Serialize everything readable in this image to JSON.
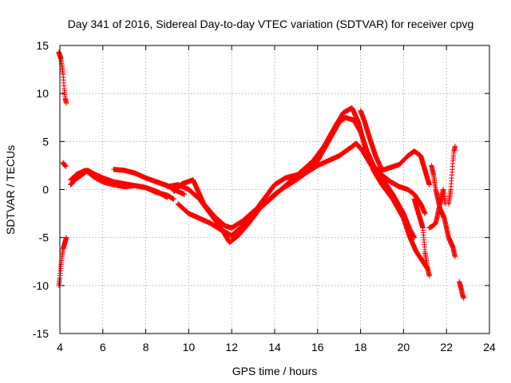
{
  "chart_data": {
    "type": "scatter",
    "title": "Day 341 of 2016, Sidereal Day-to-day VTEC variation (SDTVAR) for receiver cpvg",
    "xlabel": "GPS time / hours",
    "ylabel": "SDTVAR / TECUs",
    "xlim": [
      4,
      24
    ],
    "ylim": [
      -15,
      15
    ],
    "xticks": [
      4,
      6,
      8,
      10,
      12,
      14,
      16,
      18,
      20,
      22,
      24
    ],
    "yticks": [
      -15,
      -10,
      -5,
      0,
      5,
      10,
      15
    ],
    "grid": true,
    "marker": "+",
    "series": [
      {
        "name": "sdtvar",
        "color": "#ff0000",
        "segments": [
          {
            "x": [
              3.95,
              4.05,
              4.15,
              4.2,
              4.25,
              4.3
            ],
            "y": [
              14.3,
              13.6,
              12.0,
              10.5,
              9.5,
              9.0
            ]
          },
          {
            "x": [
              3.95,
              4.0,
              4.05,
              4.1,
              4.15,
              4.25,
              4.3
            ],
            "y": [
              -10.0,
              -9.2,
              -8.0,
              -7.0,
              -6.2,
              -5.4,
              -5.0
            ]
          },
          {
            "x": [
              4.15,
              4.2,
              4.28
            ],
            "y": [
              2.8,
              2.6,
              2.4
            ]
          },
          {
            "x": [
              4.5,
              4.7,
              5.0,
              5.3,
              5.6,
              6.0,
              6.5,
              7.0,
              7.5,
              8.0,
              8.5,
              9.0
            ],
            "y": [
              0.5,
              1.0,
              1.5,
              2.0,
              1.6,
              1.2,
              0.8,
              0.6,
              0.4,
              0.2,
              -0.2,
              -0.8
            ]
          },
          {
            "x": [
              4.5,
              4.8,
              5.2,
              5.6,
              6.0,
              6.5,
              7.0,
              7.5,
              8.0,
              8.5,
              9.0,
              9.3
            ],
            "y": [
              1.0,
              1.6,
              2.0,
              1.3,
              0.8,
              0.5,
              0.3,
              0.4,
              0.2,
              -0.3,
              -0.6,
              -1.0
            ]
          },
          {
            "x": [
              6.5,
              7.0,
              7.5,
              8.0,
              8.5,
              9.0,
              9.5,
              9.8
            ],
            "y": [
              2.1,
              2.0,
              1.7,
              1.2,
              0.8,
              0.4,
              -0.2,
              -0.5
            ]
          },
          {
            "x": [
              9.0,
              9.5,
              10.0,
              10.5,
              11.0,
              11.5,
              11.9,
              12.3,
              12.8,
              13.3,
              13.8,
              14.3,
              14.8,
              15.3,
              15.8,
              16.3,
              16.8,
              17.2,
              17.6,
              17.9,
              18.2,
              18.6,
              19.0,
              19.5,
              20.0,
              20.3,
              20.6,
              20.9,
              21.1
            ],
            "y": [
              0.3,
              0.5,
              0.0,
              -1.0,
              -2.5,
              -4.0,
              -5.5,
              -4.8,
              -3.5,
              -2.0,
              -1.0,
              0.0,
              1.0,
              2.0,
              3.0,
              4.5,
              6.5,
              8.0,
              8.5,
              7.0,
              4.5,
              2.0,
              0.5,
              -1.0,
              -3.0,
              -5.0,
              -6.5,
              -7.5,
              -8.2
            ]
          },
          {
            "x": [
              9.3,
              9.7,
              10.2,
              10.7,
              11.2,
              11.7,
              12.0,
              12.5,
              13.0,
              13.5,
              14.0,
              14.5,
              15.0,
              15.5,
              16.0,
              16.5,
              17.0,
              17.5,
              17.8,
              18.1,
              18.5,
              19.0,
              19.5,
              20.0,
              20.3,
              20.5
            ],
            "y": [
              -0.2,
              0.6,
              1.0,
              -1.5,
              -2.8,
              -3.8,
              -4.0,
              -3.3,
              -2.3,
              -1.5,
              -0.5,
              0.3,
              1.0,
              1.8,
              2.5,
              3.0,
              3.5,
              4.3,
              4.8,
              4.0,
              2.5,
              1.2,
              -0.5,
              -2.5,
              -4.2,
              -5.0
            ]
          },
          {
            "x": [
              9.5,
              10.0,
              10.5,
              11.0,
              11.5,
              12.0,
              12.5,
              13.0,
              13.5,
              14.0,
              14.5,
              15.0,
              15.5,
              16.0,
              16.5,
              17.0,
              17.3,
              17.7,
              18.0,
              18.3,
              18.6,
              19.0,
              19.4,
              19.8,
              20.2,
              20.5,
              20.8,
              21.0
            ],
            "y": [
              -1.5,
              -2.5,
              -3.0,
              -3.5,
              -4.2,
              -4.8,
              -3.8,
              -2.5,
              -1.0,
              0.5,
              1.2,
              1.5,
              1.8,
              3.0,
              5.0,
              7.0,
              7.5,
              7.2,
              6.0,
              4.0,
              2.5,
              1.5,
              0.8,
              0.3,
              0.0,
              -0.5,
              -1.5,
              -2.5
            ]
          },
          {
            "x": [
              18.0,
              18.2,
              18.4,
              18.7,
              19.0,
              19.4,
              19.8,
              20.2,
              20.5,
              20.8,
              21.0,
              21.2
            ],
            "y": [
              8.2,
              7.0,
              5.5,
              3.5,
              2.0,
              2.3,
              2.6,
              3.5,
              4.0,
              3.5,
              2.0,
              0.5
            ]
          },
          {
            "x": [
              20.5,
              20.7,
              20.9,
              21.0,
              21.1,
              21.2
            ],
            "y": [
              -1.0,
              -2.5,
              -4.0,
              -6.5,
              -8.0,
              -9.0
            ]
          },
          {
            "x": [
              21.3,
              21.4,
              21.5,
              21.6,
              21.7,
              21.8,
              21.9,
              22.0,
              22.1,
              22.2,
              22.3,
              22.35,
              22.4
            ],
            "y": [
              2.5,
              1.5,
              0.0,
              -1.0,
              -2.0,
              -2.5,
              -3.0,
              -4.0,
              -5.0,
              -5.5,
              -6.0,
              -6.5,
              -7.0
            ]
          },
          {
            "x": [
              21.2,
              21.35,
              21.5,
              21.6,
              21.75,
              21.85,
              21.95
            ],
            "y": [
              -4.0,
              -3.8,
              -3.5,
              -2.5,
              -1.0,
              0.0,
              -1.5
            ]
          },
          {
            "x": [
              22.1,
              22.2,
              22.25,
              22.3,
              22.35,
              22.4
            ],
            "y": [
              -1.5,
              0.0,
              1.5,
              3.0,
              4.0,
              4.5
            ]
          },
          {
            "x": [
              22.6,
              22.7,
              22.75,
              22.8
            ],
            "y": [
              -9.6,
              -10.5,
              -11.0,
              -11.3
            ]
          }
        ]
      }
    ]
  }
}
